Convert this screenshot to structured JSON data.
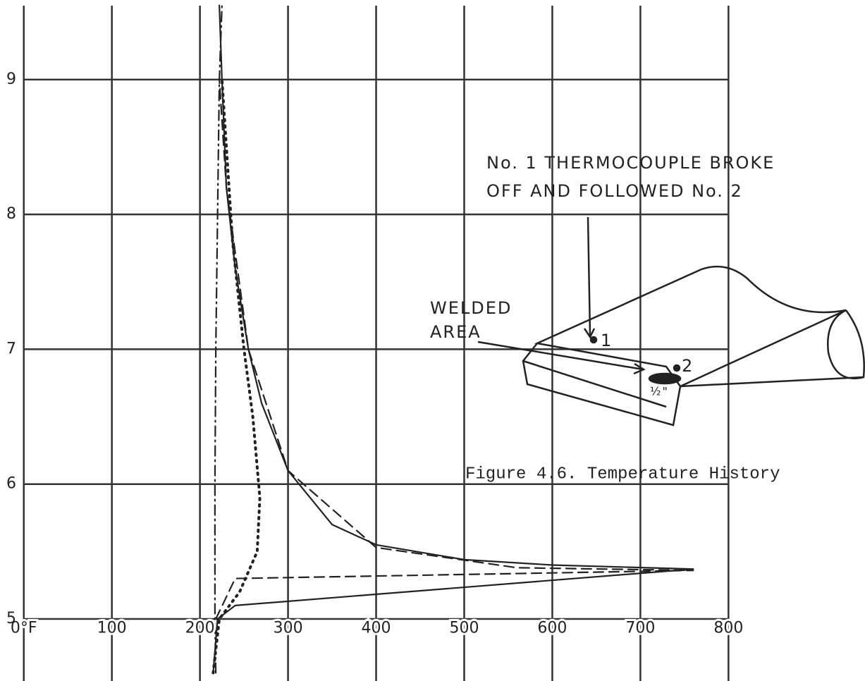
{
  "chart_data": {
    "type": "line",
    "title": "Figure 4.6.  Temperature History",
    "xlim": [
      -27,
      955
    ],
    "ylim": [
      4.54,
      9.59
    ],
    "xticks": [
      {
        "value": 0,
        "label": "0°F"
      },
      100,
      200,
      300,
      400,
      500,
      600,
      700,
      800
    ],
    "yticks": [
      5,
      6,
      7,
      8,
      9
    ],
    "grid": true,
    "series": [
      {
        "color": "#222222",
        "style": "solid",
        "x": [
          215,
          220,
          240,
          760,
          600,
          500,
          400,
          350,
          300,
          270,
          255,
          240,
          230,
          225,
          222
        ],
        "y": [
          4.6,
          5.0,
          5.1,
          5.37,
          5.4,
          5.44,
          5.55,
          5.7,
          6.1,
          6.6,
          7.0,
          7.6,
          8.2,
          9.0,
          9.55
        ]
      },
      {
        "color": "#222222",
        "style": "dashed",
        "x": [
          218,
          240,
          760,
          560,
          400,
          300,
          255,
          230,
          222
        ],
        "y": [
          5.0,
          5.3,
          5.36,
          5.38,
          5.53,
          6.1,
          7.0,
          8.2,
          9.0
        ]
      },
      {
        "color": "#222222",
        "style": "dotted",
        "x": [
          215,
          222,
          245,
          265,
          268,
          260,
          250,
          237,
          225
        ],
        "y": [
          4.6,
          5.0,
          5.2,
          5.5,
          5.9,
          6.5,
          7.0,
          7.8,
          9.0
        ]
      },
      {
        "color": "#222222",
        "style": "dashdot",
        "x": [
          218,
          217,
          217,
          218,
          220,
          222,
          225
        ],
        "y": [
          4.6,
          5.0,
          6.0,
          7.0,
          8.0,
          9.0,
          9.55
        ]
      }
    ],
    "annotations": [
      "No. 1 THERMOCOUPLE BROKE",
      "OFF AND FOLLOWED No. 2",
      "WELDED",
      "AREA",
      "1",
      "2",
      "½\""
    ]
  }
}
